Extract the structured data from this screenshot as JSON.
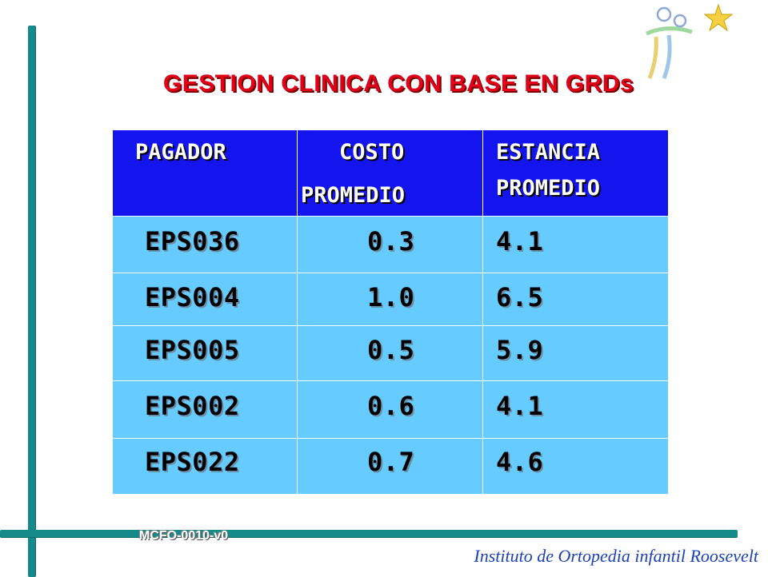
{
  "slide": {
    "title": "GESTION CLINICA  CON BASE EN GRDs",
    "footer_code": "MCFO-0010-v0",
    "institution": "Instituto de Ortopedia infantil Roosevelt",
    "accent_color": "#148a8a",
    "title_color": "#e0001a",
    "header_bg": "#1414ee",
    "body_bg": "#66ccff"
  },
  "table": {
    "headers": [
      {
        "line1": "PAGADOR",
        "line2": ""
      },
      {
        "line1": "COSTO",
        "line2": "PROMEDIO"
      },
      {
        "line1": "ESTANCIA",
        "line2": "PROMEDIO"
      }
    ],
    "rows": [
      [
        "EPS036",
        "0.3",
        "4.1"
      ],
      [
        "EPS004",
        "1.0",
        "6.5"
      ],
      [
        "EPS005",
        "0.5",
        "5.9"
      ],
      [
        "EPS002",
        "0.6",
        "4.1"
      ],
      [
        "EPS022",
        "0.7",
        "4.6"
      ]
    ]
  },
  "logo": {
    "icon": "star-figure-logo-icon"
  }
}
